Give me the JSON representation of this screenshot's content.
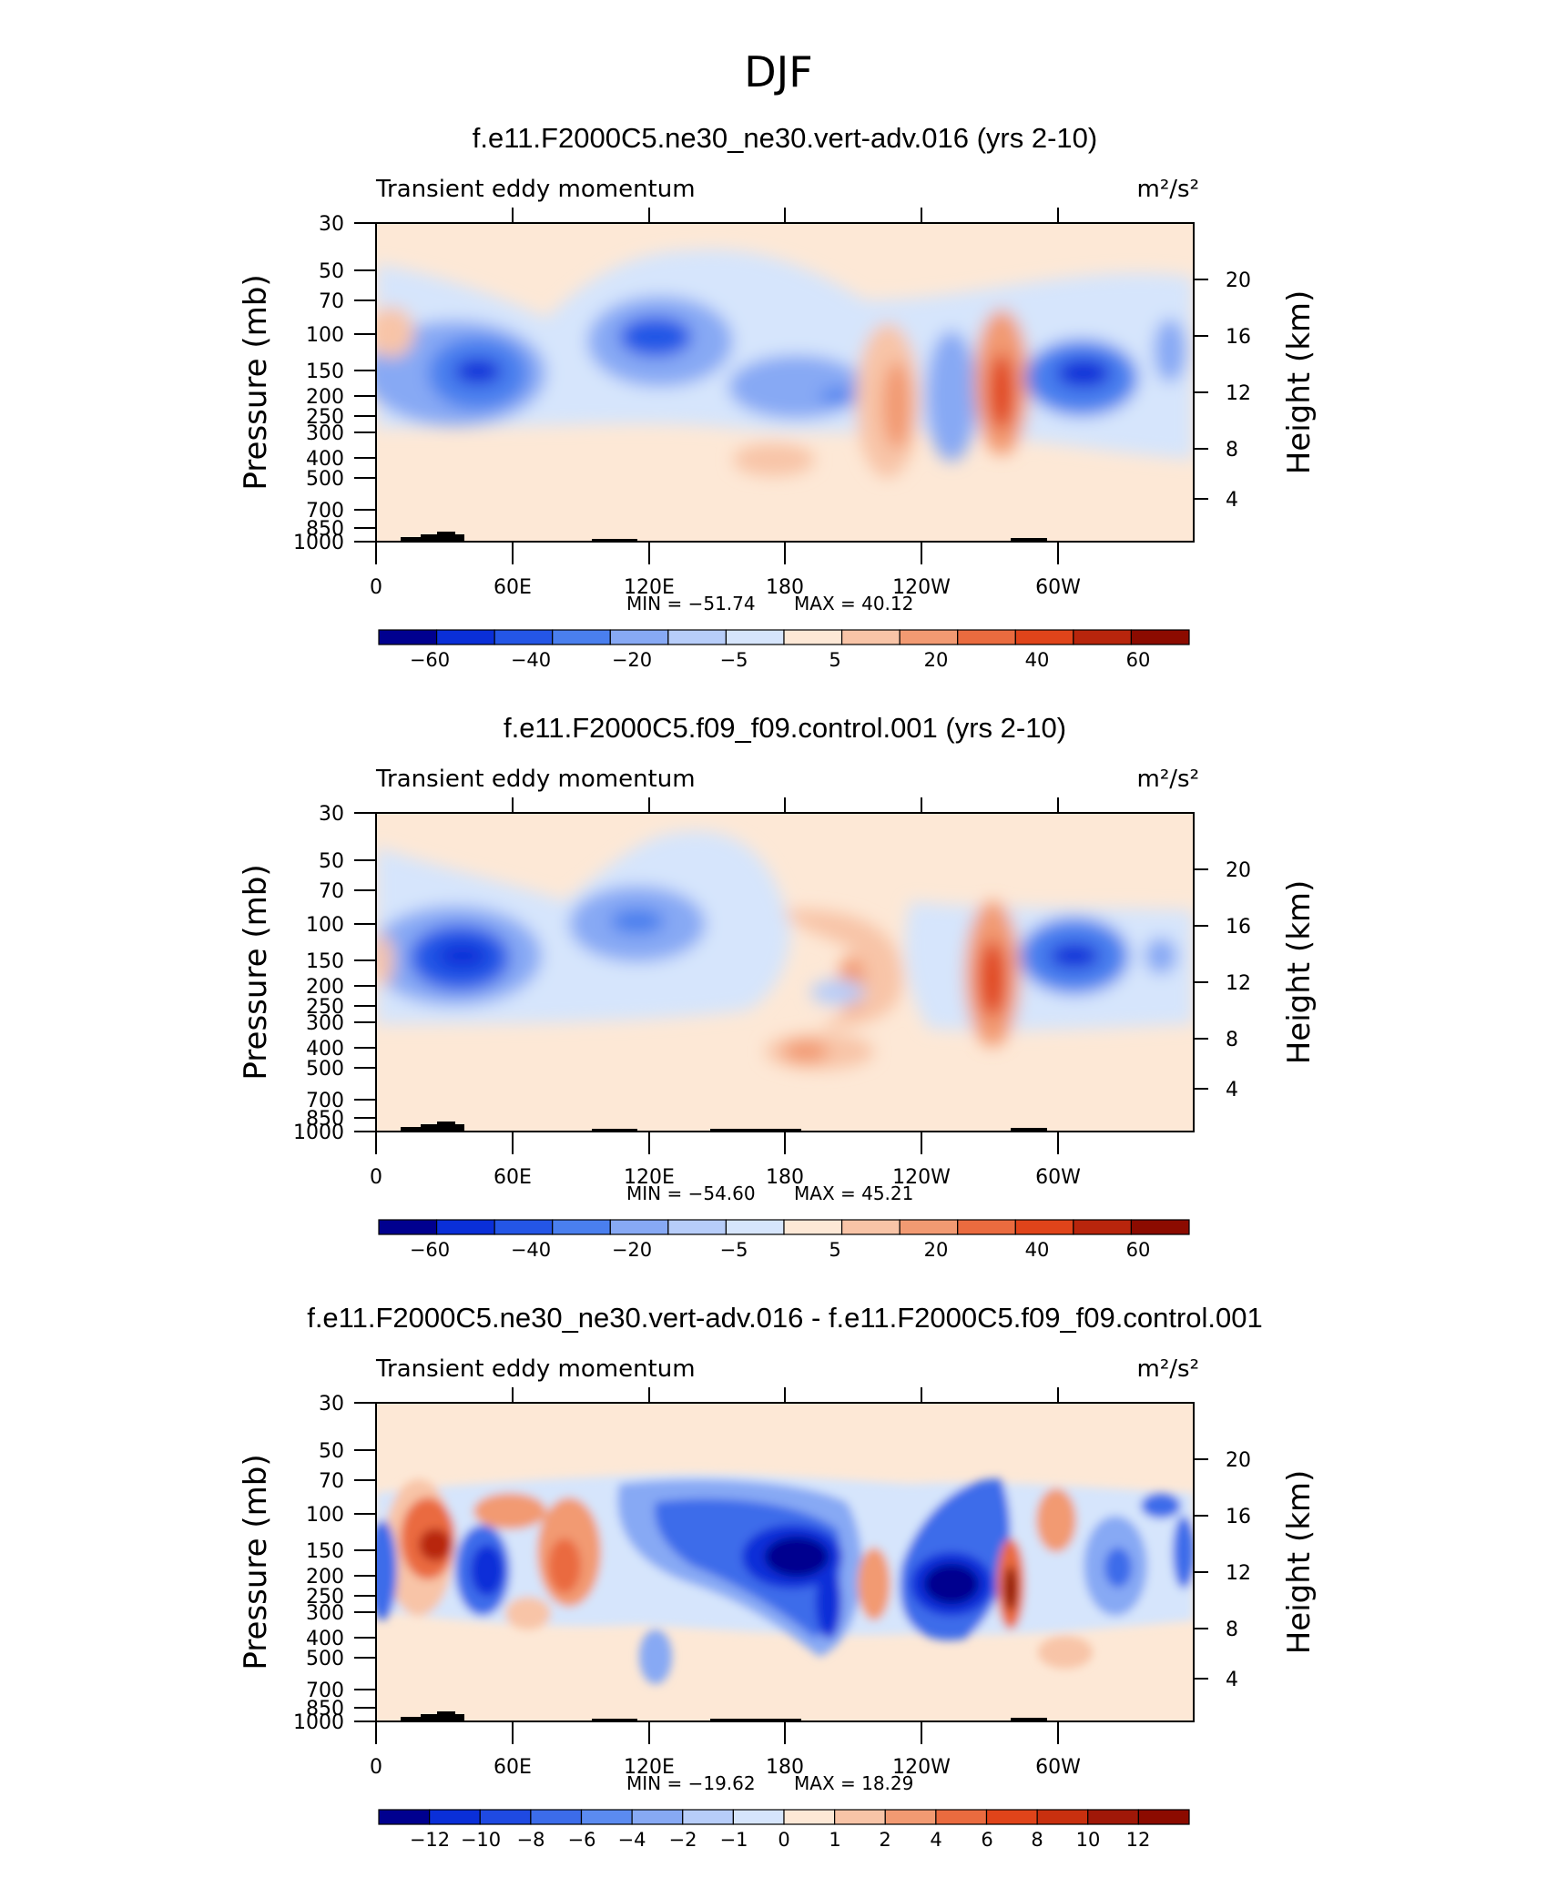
{
  "figure": {
    "title": "DJF"
  },
  "panels": [
    {
      "title": "f.e11.F2000C5.ne30_ne30.vert-adv.016 (yrs 2-10)",
      "left_string": "Transient eddy momentum",
      "right_string": "m²/s²",
      "min_label": "MIN = −51.74",
      "max_label": "MAX =  40.12",
      "colorbar_labels": [
        "−60",
        "−40",
        "−20",
        "−5",
        "5",
        "20",
        "40",
        "60"
      ]
    },
    {
      "title": "f.e11.F2000C5.f09_f09.control.001 (yrs 2-10)",
      "left_string": "Transient eddy momentum",
      "right_string": "m²/s²",
      "min_label": "MIN = −54.60",
      "max_label": "MAX =  45.21",
      "colorbar_labels": [
        "−60",
        "−40",
        "−20",
        "−5",
        "5",
        "20",
        "40",
        "60"
      ]
    },
    {
      "title": "f.e11.F2000C5.ne30_ne30.vert-adv.016 - f.e11.F2000C5.f09_f09.control.001",
      "left_string": "Transient eddy momentum",
      "right_string": "m²/s²",
      "min_label": "MIN = −19.62",
      "max_label": "MAX =  18.29",
      "colorbar_labels": [
        "−12",
        "−10",
        "−8",
        "−6",
        "−4",
        "−2",
        "−1",
        "0",
        "1",
        "2",
        "4",
        "6",
        "8",
        "10",
        "12"
      ]
    }
  ],
  "axes": {
    "ylabel": "Pressure (mb)",
    "ylabel_right": "Height (km)",
    "pressure_ticks": [
      "30",
      "50",
      "70",
      "100",
      "150",
      "200",
      "250",
      "300",
      "400",
      "500",
      "700",
      "850",
      "1000"
    ],
    "height_ticks": [
      "20",
      "16",
      "12",
      "8",
      "4"
    ],
    "lon_ticks": [
      "0",
      "60E",
      "120E",
      "180",
      "120W",
      "60W"
    ]
  },
  "colors": {
    "abs_colorbar": [
      "#00008f",
      "#0a2fd8",
      "#2456e6",
      "#4a7fee",
      "#87a9f4",
      "#b7cdf9",
      "#d6e5fc",
      "#fde8d6",
      "#f8c4a7",
      "#f29a72",
      "#ea6b3f",
      "#e0441a",
      "#b8250c",
      "#8c0b00"
    ],
    "diff_colorbar": [
      "#00008f",
      "#0a2fd8",
      "#1f4ae2",
      "#3c6cea",
      "#5b8bf0",
      "#87a9f4",
      "#b7cdf9",
      "#d6e5fc",
      "#fde8d6",
      "#f8c4a7",
      "#f29a72",
      "#ea6b3f",
      "#e0441a",
      "#c8300f",
      "#a01808",
      "#8c0b00"
    ]
  },
  "chart_data": [
    {
      "type": "heatmap",
      "title": "f.e11.F2000C5.ne30_ne30.vert-adv.016 (yrs 2-10)",
      "ylabel": "Pressure (mb)",
      "ylim": [
        1000,
        30
      ],
      "x_range": [
        "0",
        "360"
      ],
      "colorbar_levels": [
        -70,
        -60,
        -50,
        -40,
        -30,
        -20,
        -10,
        -5,
        5,
        10,
        20,
        30,
        40,
        50,
        60,
        70
      ],
      "min": -51.74,
      "max": 40.12,
      "features": [
        {
          "lon": 45,
          "p": 150,
          "value": -45
        },
        {
          "lon": 125,
          "p": 110,
          "value": -40
        },
        {
          "lon": 200,
          "p": 200,
          "value": -30
        },
        {
          "lon": 220,
          "p": 180,
          "value": 25
        },
        {
          "lon": 255,
          "p": 220,
          "value": -18
        },
        {
          "lon": 275,
          "p": 200,
          "value": 40
        },
        {
          "lon": 310,
          "p": 160,
          "value": -42
        },
        {
          "lon": 175,
          "p": 420,
          "value": 12
        }
      ]
    },
    {
      "type": "heatmap",
      "title": "f.e11.F2000C5.f09_f09.control.001 (yrs 2-10)",
      "ylabel": "Pressure (mb)",
      "ylim": [
        1000,
        30
      ],
      "x_range": [
        "0",
        "360"
      ],
      "colorbar_levels": [
        -70,
        -60,
        -50,
        -40,
        -30,
        -20,
        -10,
        -5,
        5,
        10,
        20,
        30,
        40,
        50,
        60,
        70
      ],
      "min": -54.6,
      "max": 45.21,
      "features": [
        {
          "lon": 40,
          "p": 150,
          "value": -50
        },
        {
          "lon": 120,
          "p": 110,
          "value": -35
        },
        {
          "lon": 210,
          "p": 140,
          "value": 22
        },
        {
          "lon": 270,
          "p": 200,
          "value": 45
        },
        {
          "lon": 310,
          "p": 150,
          "value": -45
        },
        {
          "lon": 185,
          "p": 430,
          "value": 18
        }
      ]
    },
    {
      "type": "heatmap",
      "title": "f.e11.F2000C5.ne30_ne30.vert-adv.016 - f.e11.F2000C5.f09_f09.control.001",
      "ylabel": "Pressure (mb)",
      "ylim": [
        1000,
        30
      ],
      "x_range": [
        "0",
        "360"
      ],
      "colorbar_levels": [
        -14,
        -12,
        -10,
        -8,
        -6,
        -4,
        -2,
        -1,
        0,
        1,
        2,
        4,
        6,
        8,
        10,
        12,
        14
      ],
      "min": -19.62,
      "max": 18.29,
      "features": [
        {
          "lon": 28,
          "p": 150,
          "value": 16
        },
        {
          "lon": 50,
          "p": 200,
          "value": -18
        },
        {
          "lon": 80,
          "p": 170,
          "value": 8
        },
        {
          "lon": 175,
          "p": 160,
          "value": -18
        },
        {
          "lon": 250,
          "p": 210,
          "value": -19
        },
        {
          "lon": 280,
          "p": 250,
          "value": 16
        },
        {
          "lon": 325,
          "p": 190,
          "value": -7
        },
        {
          "lon": 345,
          "p": 110,
          "value": -6
        }
      ]
    }
  ]
}
